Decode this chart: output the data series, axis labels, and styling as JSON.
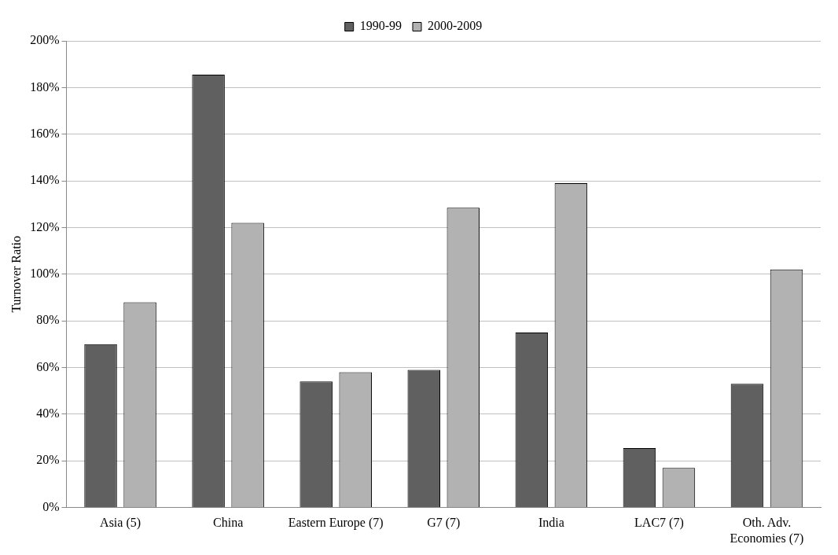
{
  "chart_data": {
    "type": "bar",
    "ylabel": "Turnover Ratio",
    "categories": [
      "Asia (5)",
      "China",
      "Eastern Europe (7)",
      "G7 (7)",
      "India",
      "LAC7 (7)",
      "Oth. Adv. Economies (7)"
    ],
    "series": [
      {
        "name": "1990-99",
        "color": "#606060",
        "values": [
          70,
          185.5,
          54,
          59,
          75,
          25.5,
          53
        ]
      },
      {
        "name": "2000-2009",
        "color": "#b2b2b2",
        "values": [
          88,
          122,
          58,
          128.5,
          139,
          17,
          102
        ]
      }
    ],
    "ylim": [
      0,
      200
    ],
    "yticks": [
      {
        "value": 0,
        "label": "0%"
      },
      {
        "value": 20,
        "label": "20%"
      },
      {
        "value": 40,
        "label": "40%"
      },
      {
        "value": 60,
        "label": "60%"
      },
      {
        "value": 80,
        "label": "80%"
      },
      {
        "value": 100,
        "label": "100%"
      },
      {
        "value": 120,
        "label": "120%"
      },
      {
        "value": 140,
        "label": "140%"
      },
      {
        "value": 160,
        "label": "160%"
      },
      {
        "value": 180,
        "label": "180%"
      },
      {
        "value": 200,
        "label": "200%"
      }
    ],
    "grid": "y",
    "legend": "top"
  }
}
